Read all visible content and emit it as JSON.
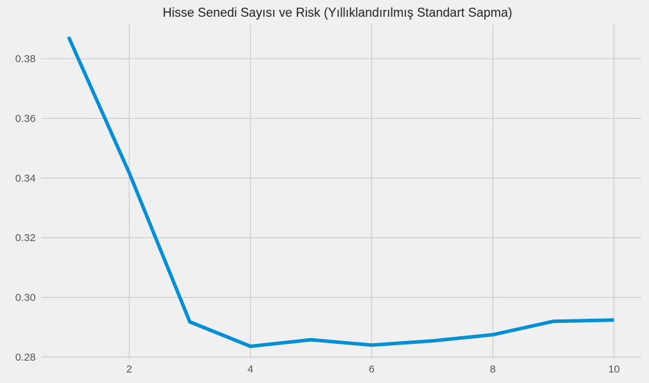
{
  "chart_data": {
    "type": "line",
    "title": "Hisse Senedi Sayısı ve Risk (Yıllıklandırılmış Standart Sapma)",
    "xlabel": "",
    "ylabel": "",
    "x": [
      1,
      2,
      3,
      4,
      5,
      6,
      7,
      8,
      9,
      10
    ],
    "series": [
      {
        "values": [
          0.3873,
          0.3418,
          0.2918,
          0.2836,
          0.2858,
          0.284,
          0.2854,
          0.2875,
          0.292,
          0.2924
        ],
        "color": "#008fd5"
      }
    ],
    "xlim": [
      0.55,
      10.45
    ],
    "ylim": [
      0.2795,
      0.3915
    ],
    "x_ticks": [
      2,
      4,
      6,
      8,
      10
    ],
    "y_ticks": [
      0.28,
      0.3,
      0.32,
      0.34,
      0.36,
      0.38
    ],
    "x_tick_labels": [
      "2",
      "4",
      "6",
      "8",
      "10"
    ],
    "y_tick_labels": [
      "0.28",
      "0.30",
      "0.32",
      "0.34",
      "0.36",
      "0.38"
    ],
    "grid": true,
    "legend": "none",
    "background_color": "#f0f0f0",
    "grid_color": "#cbcbcb"
  }
}
